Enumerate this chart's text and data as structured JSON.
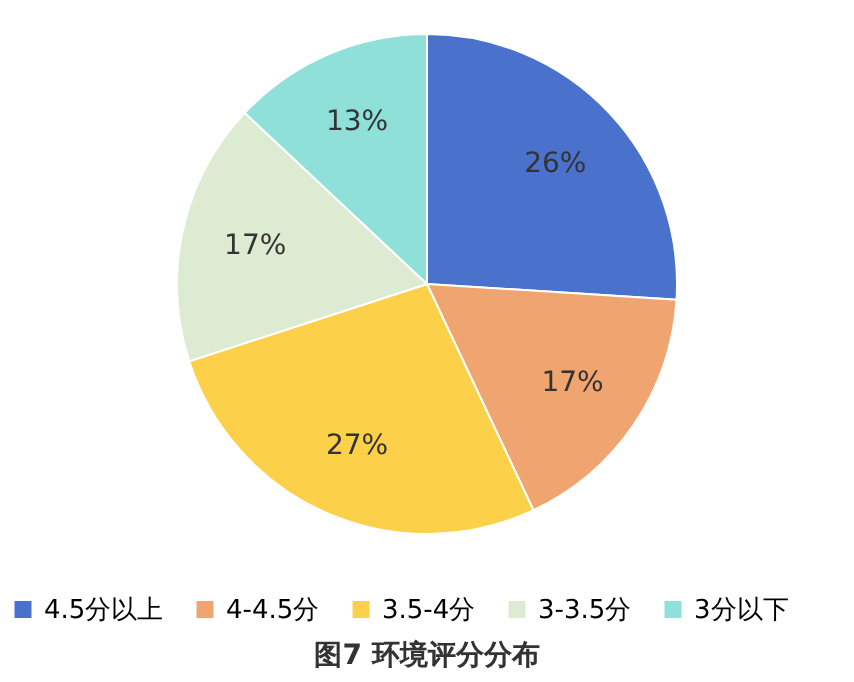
{
  "chart_data": {
    "type": "pie",
    "title": "图7  环境评分分布",
    "categories": [
      "4.5分以上",
      "4-4.5分",
      "3.5-4分",
      "3-3.5分",
      "3分以下"
    ],
    "values": [
      26,
      17,
      27,
      17,
      13
    ],
    "value_labels": [
      "26%",
      "17%",
      "27%",
      "17%",
      "13%"
    ],
    "colors": [
      "#4a72cc",
      "#f0a470",
      "#fdd04a",
      "#ddebd2",
      "#8fe0d8"
    ],
    "legend": "bottom"
  }
}
